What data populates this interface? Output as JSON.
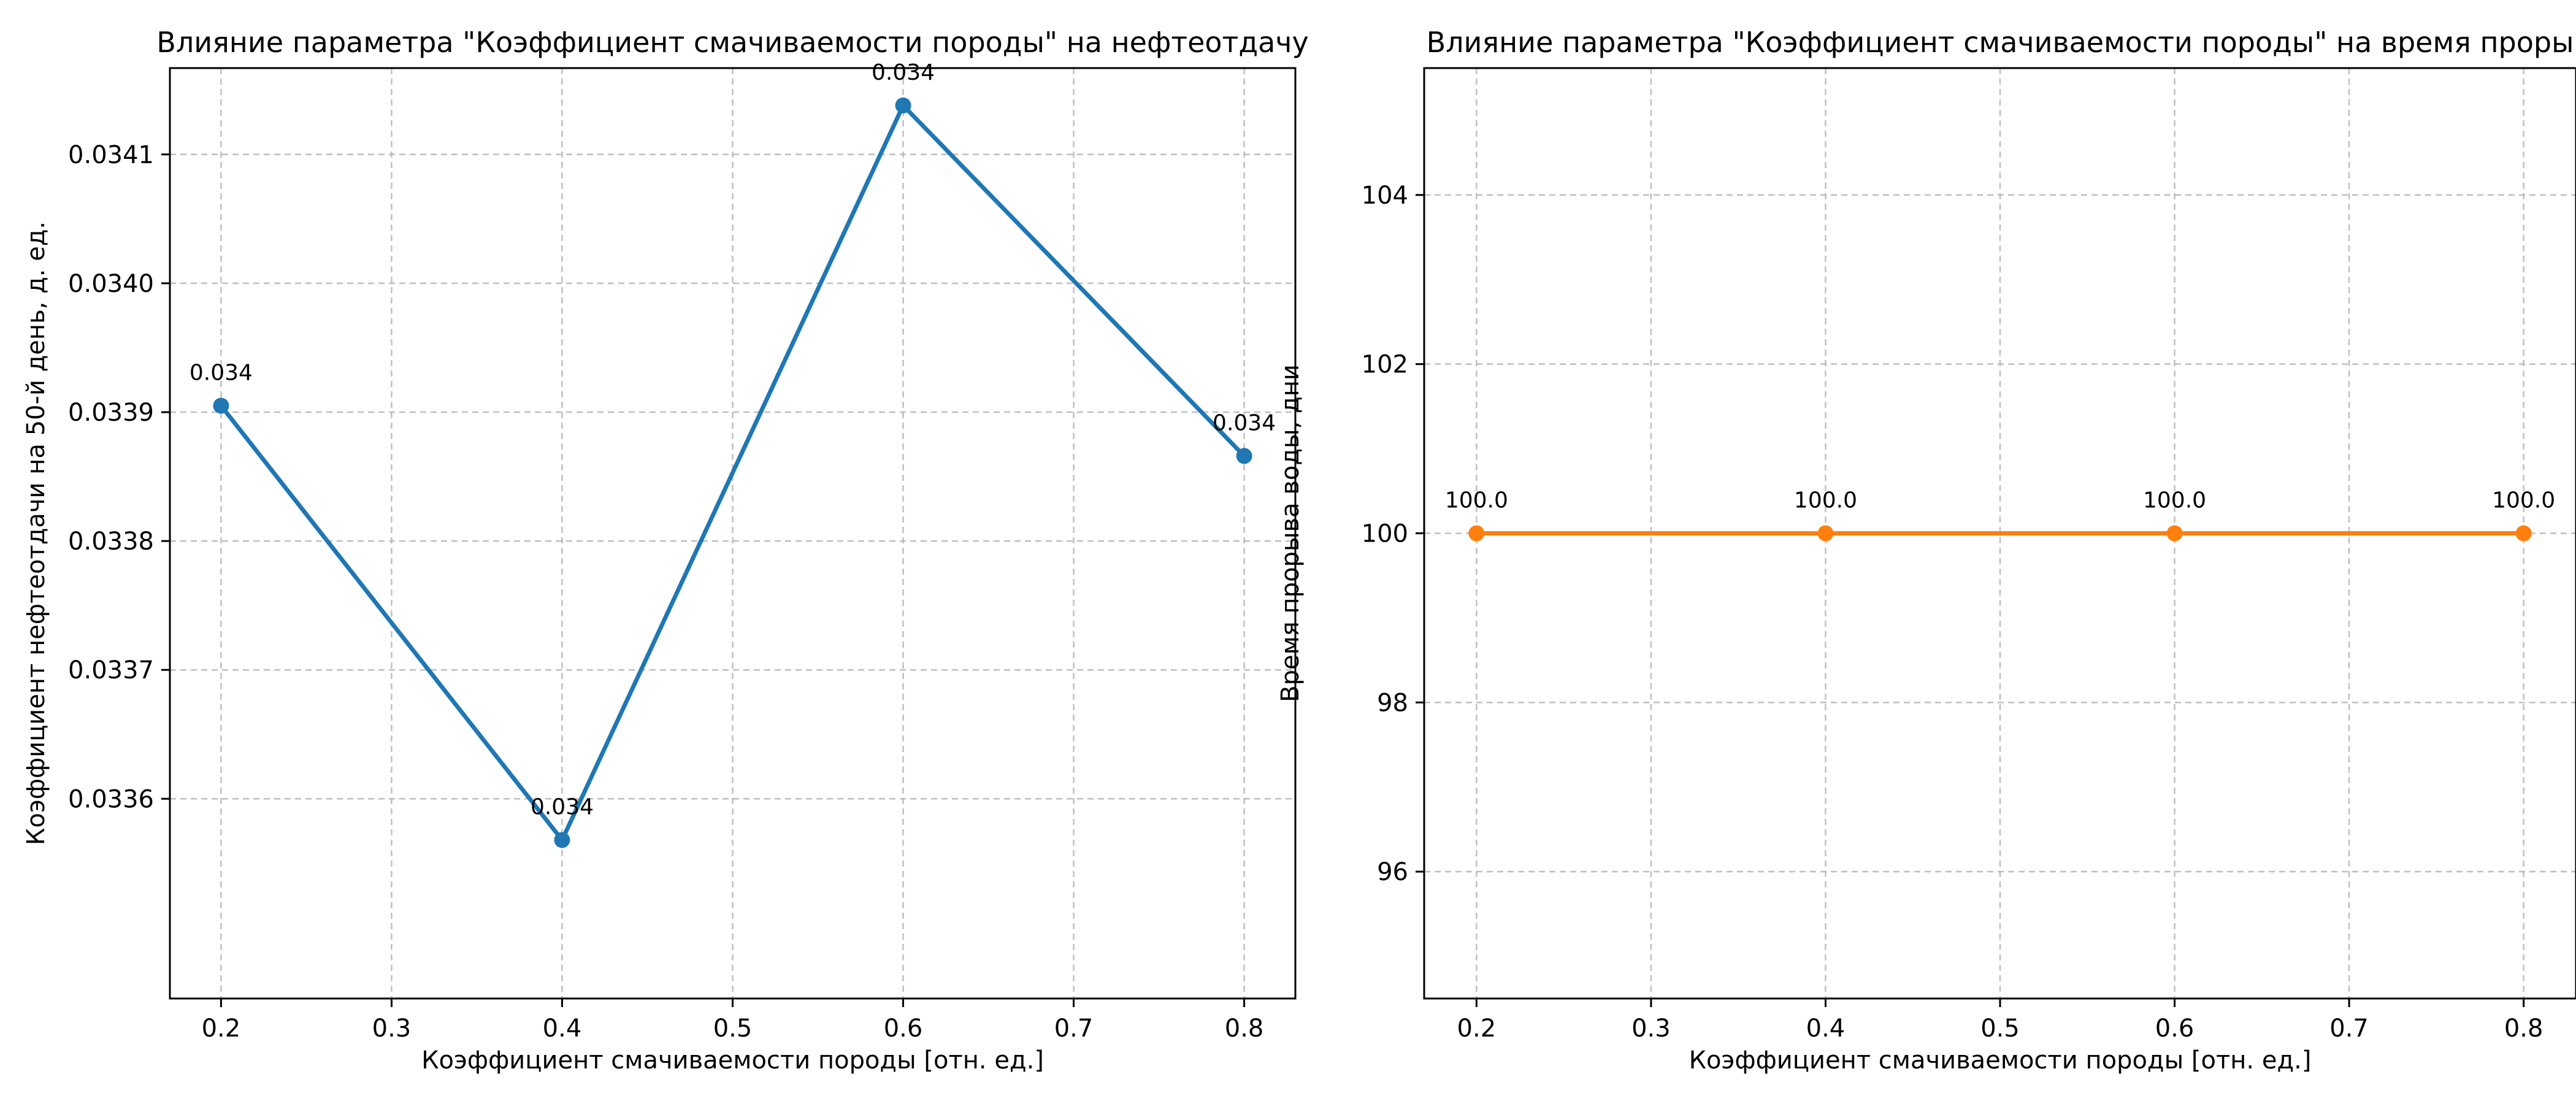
{
  "chart_data": [
    {
      "type": "line",
      "title": "Влияние параметра \"Коэффициент смачиваемости породы\" на нефтеотдачу",
      "xlabel": "Коэффициент смачиваемости породы [отн. ед.]",
      "ylabel": "Коэффициент нефтеотдачи на 50-й день, д. ед.",
      "x": [
        0.2,
        0.4,
        0.6,
        0.8
      ],
      "series": [
        {
          "values": [
            0.033905,
            0.033568,
            0.034138,
            0.033866
          ],
          "color": "#1f77b4"
        }
      ],
      "data_labels": [
        "0.034",
        "0.034",
        "0.034",
        "0.034"
      ],
      "xlim": [
        0.17,
        0.83
      ],
      "ylim": [
        0.033445,
        0.034167
      ],
      "xticks": [
        0.2,
        0.3,
        0.4,
        0.5,
        0.6,
        0.7,
        0.8
      ],
      "xtick_labels": [
        "0.2",
        "0.3",
        "0.4",
        "0.5",
        "0.6",
        "0.7",
        "0.8"
      ],
      "yticks": [
        0.0336,
        0.0337,
        0.0338,
        0.0339,
        0.034,
        0.0341
      ],
      "ytick_labels": [
        "0.0336",
        "0.0337",
        "0.0338",
        "0.0339",
        "0.0340",
        "0.0341"
      ],
      "grid": true,
      "legend": "none"
    },
    {
      "type": "line",
      "title": "Влияние параметра \"Коэффициент смачиваемости породы\" на время проры",
      "xlabel": "Коэффициент смачиваемости породы [отн. ед.]",
      "ylabel": "Время прорыва воды, дни",
      "x": [
        0.2,
        0.4,
        0.6,
        0.8
      ],
      "series": [
        {
          "values": [
            100.0,
            100.0,
            100.0,
            100.0
          ],
          "color": "#ff7f0e"
        }
      ],
      "data_labels": [
        "100.0",
        "100.0",
        "100.0",
        "100.0"
      ],
      "xlim": [
        0.17,
        0.83
      ],
      "ylim": [
        94.5,
        105.5
      ],
      "xticks": [
        0.2,
        0.3,
        0.4,
        0.5,
        0.6,
        0.7,
        0.8
      ],
      "xtick_labels": [
        "0.2",
        "0.3",
        "0.4",
        "0.5",
        "0.6",
        "0.7",
        "0.8"
      ],
      "yticks": [
        96,
        98,
        100,
        102,
        104
      ],
      "ytick_labels": [
        "96",
        "98",
        "100",
        "102",
        "104"
      ],
      "grid": true,
      "legend": "none"
    }
  ]
}
